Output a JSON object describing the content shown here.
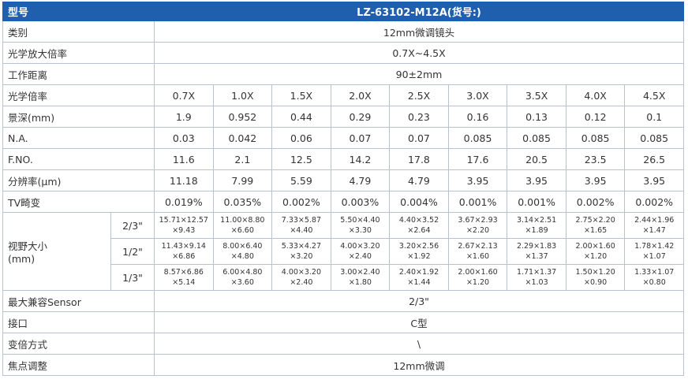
{
  "header": {
    "label": "型号",
    "value": "LZ-63102-M12A(货号:)"
  },
  "spec_rows_top": [
    {
      "label": "类别",
      "value": "12mm微调镜头"
    },
    {
      "label": "光学放大倍率",
      "value": "0.7X~4.5X"
    },
    {
      "label": "工作距离",
      "value": "90±2mm"
    }
  ],
  "measured_rows": [
    {
      "label": "光学倍率",
      "values": [
        "0.7X",
        "1.0X",
        "1.5X",
        "2.0X",
        "2.5X",
        "3.0X",
        "3.5X",
        "4.0X",
        "4.5X"
      ]
    },
    {
      "label": "景深(mm)",
      "values": [
        "1.9",
        "0.952",
        "0.44",
        "0.29",
        "0.23",
        "0.16",
        "0.13",
        "0.12",
        "0.1"
      ]
    },
    {
      "label": "N.A.",
      "values": [
        "0.03",
        "0.042",
        "0.06",
        "0.07",
        "0.07",
        "0.085",
        "0.085",
        "0.085",
        "0.085"
      ]
    },
    {
      "label": "F.NO.",
      "values": [
        "11.6",
        "2.1",
        "12.5",
        "14.2",
        "17.8",
        "17.6",
        "20.5",
        "23.5",
        "26.5"
      ]
    },
    {
      "label": "分辨率(μm)",
      "values": [
        "11.18",
        "7.99",
        "5.59",
        "4.79",
        "4.79",
        "3.95",
        "3.95",
        "3.95",
        "3.95"
      ]
    },
    {
      "label": "TV畸变",
      "values": [
        "0.019%",
        "0.035%",
        "0.002%",
        "0.003%",
        "0.004%",
        "0.001%",
        "0.001%",
        "0.002%",
        "0.002%"
      ]
    }
  ],
  "field_of_view": {
    "label": [
      "视野大小",
      "(mm)"
    ],
    "rows": [
      {
        "size": "2/3\"",
        "values": [
          [
            "15.71×12.57",
            "×9.43"
          ],
          [
            "11.00×8.80",
            "×6.60"
          ],
          [
            "7.33×5.87",
            "×4.40"
          ],
          [
            "5.50×4.40",
            "×3.30"
          ],
          [
            "4.40×3.52",
            "×2.64"
          ],
          [
            "3.67×2.93",
            "×2.20"
          ],
          [
            "3.14×2.51",
            "×1.89"
          ],
          [
            "2.75×2.20",
            "×1.65"
          ],
          [
            "2.44×1.96",
            "×1.47"
          ]
        ]
      },
      {
        "size": "1/2\"",
        "values": [
          [
            "11.43×9.14",
            "×6.86"
          ],
          [
            "8.00×6.40",
            "×4.80"
          ],
          [
            "5.33×4.27",
            "×3.20"
          ],
          [
            "4.00×3.20",
            "×2.40"
          ],
          [
            "3.20×2.56",
            "×1.92"
          ],
          [
            "2.67×2.13",
            "×1.60"
          ],
          [
            "2.29×1.83",
            "×1.37"
          ],
          [
            "2.00×1.60",
            "×1.20"
          ],
          [
            "1.78×1.42",
            "×1.07"
          ]
        ]
      },
      {
        "size": "1/3\"",
        "values": [
          [
            "8.57×6.86",
            "×5.14"
          ],
          [
            "6.00×4.80",
            "×3.60"
          ],
          [
            "4.00×3.20",
            "×2.40"
          ],
          [
            "3.00×2.40",
            "×1.80"
          ],
          [
            "2.40×1.92",
            "×1.44"
          ],
          [
            "2.00×1.60",
            "×1.20"
          ],
          [
            "1.71×1.37",
            "×1.03"
          ],
          [
            "1.50×1.20",
            "×0.90"
          ],
          [
            "1.33×1.07",
            "×0.80"
          ]
        ]
      }
    ]
  },
  "spec_rows_bottom": [
    {
      "label": "最大兼容Sensor",
      "value": "2/3\""
    },
    {
      "label": "接口",
      "value": "C型"
    },
    {
      "label": "变倍方式",
      "value": "\\"
    },
    {
      "label": "焦点调整",
      "value": "12mm微调"
    }
  ]
}
